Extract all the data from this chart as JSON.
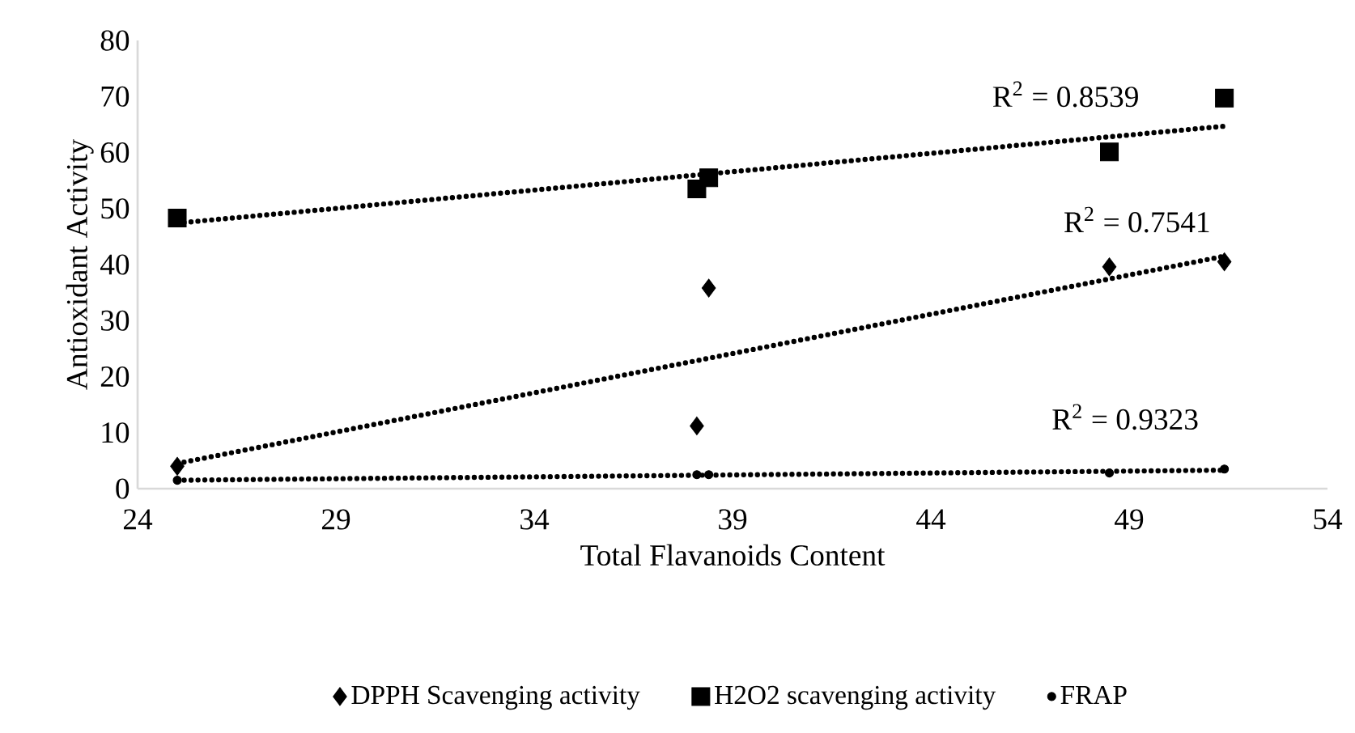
{
  "chart_data": {
    "type": "scatter",
    "xlabel": "Total Flavanoids Content",
    "ylabel": "Antioxidant Activity",
    "xlim": [
      24,
      54
    ],
    "xticks": [
      24,
      29,
      34,
      39,
      44,
      49,
      54
    ],
    "ylim": [
      0,
      80
    ],
    "yticks": [
      0,
      10,
      20,
      30,
      40,
      50,
      60,
      70,
      80
    ],
    "grid": false,
    "legend": "bottom",
    "series": [
      {
        "name": "DPPH Scavenging activity",
        "marker": "diamond",
        "color": "#000000",
        "x": [
          25.0,
          38.1,
          38.4,
          48.5,
          51.4
        ],
        "values": [
          4.0,
          11.2,
          35.8,
          39.6,
          40.5
        ]
      },
      {
        "name": "H2O2 scavenging activity",
        "marker": "square",
        "color": "#000000",
        "x": [
          25.0,
          38.1,
          38.4,
          48.5,
          51.4
        ],
        "values": [
          48.3,
          53.5,
          55.5,
          60.1,
          69.7
        ]
      },
      {
        "name": "FRAP",
        "marker": "circle",
        "color": "#000000",
        "x": [
          25.0,
          38.1,
          38.4,
          48.5,
          51.4
        ],
        "values": [
          1.5,
          2.5,
          2.5,
          2.8,
          3.5
        ]
      },
      {
        "type": "line",
        "marker": "none",
        "line_style": "dotted",
        "color": "#000000",
        "x": [
          25.0,
          51.4
        ],
        "values": [
          4.5,
          41.5
        ]
      },
      {
        "type": "line",
        "marker": "none",
        "line_style": "dotted",
        "color": "#000000",
        "x": [
          25.0,
          51.4
        ],
        "values": [
          47.4,
          64.7
        ]
      },
      {
        "type": "line",
        "marker": "none",
        "line_style": "dotted",
        "color": "#000000",
        "x": [
          25.0,
          51.4
        ],
        "values": [
          1.5,
          3.3
        ]
      }
    ],
    "annotations": [
      "R$^{2}$ = 0.8539",
      "R$^{2}$ = 0.7541",
      "R$^{2}$ = 0.9323"
    ]
  }
}
